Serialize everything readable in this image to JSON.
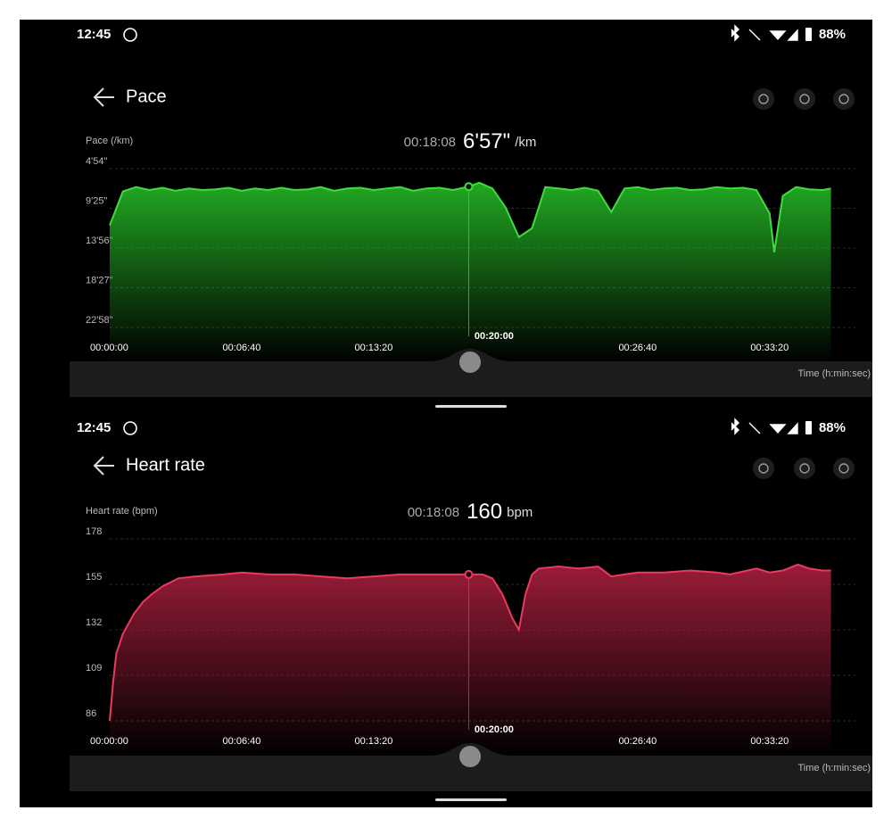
{
  "screens": [
    {
      "status_bar": {
        "time": "12:45",
        "battery": "88%"
      },
      "header": {
        "title": "Pace"
      },
      "readout": {
        "time": "00:18:08",
        "value": "6'57\"",
        "unit": "/km"
      },
      "chart": {
        "type": "area",
        "y_label": "Pace (/km)",
        "x_label": "Time (h:min:sec)",
        "y_inverted": true,
        "color": "#3fdc3f",
        "fill": "#22a822",
        "x": [
          0,
          40,
          80,
          120,
          160,
          200,
          240,
          280,
          320,
          360,
          400,
          440,
          480,
          520,
          560,
          600,
          640,
          680,
          720,
          760,
          800,
          840,
          880,
          920,
          960,
          1000,
          1040,
          1088,
          1120,
          1160,
          1200,
          1240,
          1280,
          1320,
          1360,
          1400,
          1440,
          1480,
          1520,
          1560,
          1600,
          1640,
          1680,
          1720,
          1760,
          1800,
          1840,
          1880,
          1920,
          1960,
          2000,
          2014,
          2040,
          2080,
          2120,
          2160,
          2186
        ],
        "values": [
          682,
          450,
          420,
          440,
          425,
          445,
          430,
          440,
          435,
          425,
          445,
          430,
          440,
          425,
          440,
          435,
          420,
          445,
          430,
          425,
          440,
          430,
          420,
          445,
          430,
          425,
          440,
          417,
          390,
          430,
          560,
          762,
          700,
          420,
          430,
          440,
          425,
          445,
          590,
          430,
          420,
          440,
          430,
          425,
          440,
          435,
          420,
          430,
          425,
          440,
          600,
          866,
          480,
          420,
          435,
          440,
          430
        ],
        "xlim": [
          0,
          2260
        ],
        "ylim": [
          294,
          1378
        ],
        "xticks": [
          {
            "value": 0,
            "label": "00:00:00"
          },
          {
            "value": 400,
            "label": "00:06:40"
          },
          {
            "value": 800,
            "label": "00:13:20"
          },
          {
            "value": 1200,
            "label": "00:20:00"
          },
          {
            "value": 1600,
            "label": "00:26:40"
          },
          {
            "value": 2000,
            "label": "00:33:20"
          }
        ],
        "yticks": [
          {
            "value": 294,
            "label": "4'54\""
          },
          {
            "value": 565,
            "label": "9'25\""
          },
          {
            "value": 836,
            "label": "13'56\""
          },
          {
            "value": 1107,
            "label": "18'27\""
          },
          {
            "value": 1378,
            "label": "22'58\""
          }
        ]
      }
    },
    {
      "status_bar": {
        "time": "12:45",
        "battery": "88%"
      },
      "header": {
        "title": "Heart rate"
      },
      "readout": {
        "time": "00:18:08",
        "value": "160",
        "unit": "bpm"
      },
      "chart": {
        "type": "area",
        "y_label": "Heart rate (bpm)",
        "x_label": "Time (h:min:sec)",
        "y_inverted": false,
        "color": "#ec3a5c",
        "fill": "#9a1c38",
        "x": [
          0,
          10,
          20,
          40,
          73,
          100,
          127,
          160,
          208,
          260,
          343,
          400,
          480,
          560,
          640,
          720,
          800,
          880,
          960,
          1040,
          1088,
          1130,
          1160,
          1190,
          1220,
          1240,
          1260,
          1280,
          1300,
          1360,
          1420,
          1480,
          1520,
          1560,
          1600,
          1680,
          1760,
          1840,
          1880,
          1960,
          2000,
          2040,
          2086,
          2120,
          2160,
          2186
        ],
        "values": [
          86,
          105,
          120,
          130,
          140,
          146,
          150,
          154,
          158,
          159,
          160,
          161,
          160,
          160,
          159,
          158,
          159,
          160,
          160,
          160,
          160,
          160,
          158,
          150,
          138,
          132,
          150,
          160,
          163,
          164,
          163,
          164,
          159,
          160,
          161,
          161,
          162,
          161,
          160,
          163,
          161,
          162,
          165,
          163,
          162,
          162
        ],
        "xlim": [
          0,
          2260
        ],
        "ylim": [
          86,
          178
        ],
        "xticks": [
          {
            "value": 0,
            "label": "00:00:00"
          },
          {
            "value": 400,
            "label": "00:06:40"
          },
          {
            "value": 800,
            "label": "00:13:20"
          },
          {
            "value": 1200,
            "label": "00:20:00"
          },
          {
            "value": 1600,
            "label": "00:26:40"
          },
          {
            "value": 2000,
            "label": "00:33:20"
          }
        ],
        "yticks": [
          86,
          109,
          132,
          155,
          178
        ]
      }
    }
  ]
}
